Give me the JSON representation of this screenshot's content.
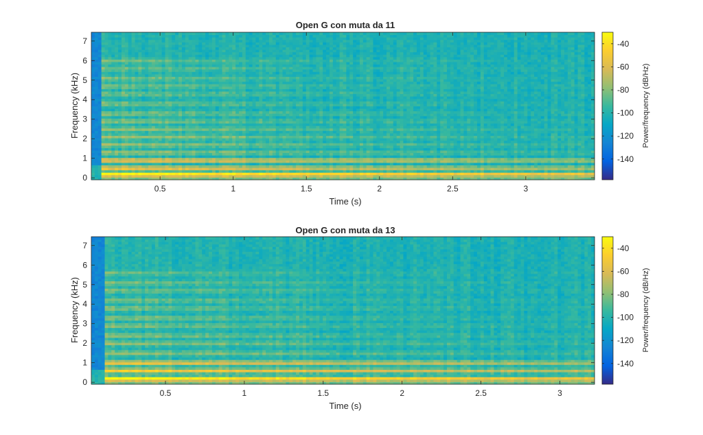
{
  "chart_data": [
    {
      "type": "heatmap",
      "title": "Open G con muta da 11",
      "xlabel": "Time (s)",
      "ylabel": "Frequency (kHz)",
      "xlim": [
        0.03,
        3.47
      ],
      "ylim": [
        -0.1,
        7.45
      ],
      "xticks": [
        0.5,
        1,
        1.5,
        2,
        2.5,
        3
      ],
      "xtick_labels": [
        "0.5",
        "1",
        "1.5",
        "2",
        "2.5",
        "3"
      ],
      "yticks": [
        0,
        1,
        2,
        3,
        4,
        5,
        6,
        7
      ],
      "ytick_labels": [
        "0",
        "1",
        "2",
        "3",
        "4",
        "5",
        "6",
        "7"
      ],
      "onset_time": 0.1,
      "harmonic_bands_khz": [
        0.2,
        0.5,
        0.9,
        1.3,
        1.7,
        2.1,
        2.5,
        2.9,
        3.3,
        3.8,
        4.3,
        4.7,
        5.1,
        5.6,
        6.0
      ],
      "colorbar": {
        "label": "Power/frequency (dB/Hz)",
        "range": [
          -158,
          -30
        ],
        "ticks": [
          -40,
          -60,
          -80,
          -100,
          -120,
          -140
        ],
        "tick_labels": [
          "-40",
          "-60",
          "-80",
          "-100",
          "-120",
          "-140"
        ],
        "colormap": "parula"
      }
    },
    {
      "type": "heatmap",
      "title": "Open G con muta da 13",
      "xlabel": "Time (s)",
      "ylabel": "Frequency (kHz)",
      "xlim": [
        0.03,
        3.22
      ],
      "ylim": [
        -0.1,
        7.45
      ],
      "xticks": [
        0.5,
        1,
        1.5,
        2,
        2.5,
        3
      ],
      "xtick_labels": [
        "0.5",
        "1",
        "1.5",
        "2",
        "2.5",
        "3"
      ],
      "yticks": [
        0,
        1,
        2,
        3,
        4,
        5,
        6,
        7
      ],
      "ytick_labels": [
        "0",
        "1",
        "2",
        "3",
        "4",
        "5",
        "6",
        "7"
      ],
      "onset_time": 0.11,
      "harmonic_bands_khz": [
        0.2,
        0.6,
        1.0,
        1.5,
        2.0,
        2.4,
        2.9,
        3.3,
        3.8,
        4.2,
        4.7,
        5.1,
        5.6
      ],
      "colorbar": {
        "label": "Power/frequency (dB/Hz)",
        "range": [
          -158,
          -30
        ],
        "ticks": [
          -40,
          -60,
          -80,
          -100,
          -120,
          -140
        ],
        "tick_labels": [
          "-40",
          "-60",
          "-80",
          "-100",
          "-120",
          "-140"
        ],
        "colormap": "parula"
      }
    }
  ]
}
